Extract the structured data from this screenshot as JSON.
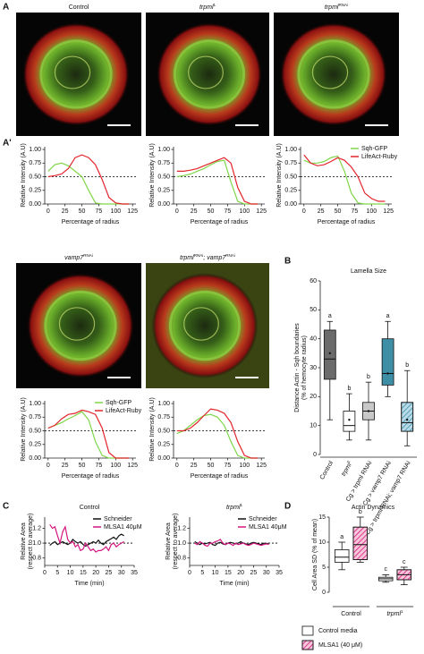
{
  "panel_labels": [
    "A",
    "A'",
    "B",
    "C",
    "D"
  ],
  "images": [
    {
      "title": "Control"
    },
    {
      "title": [
        {
          "text": "trpml"
        },
        {
          "sup": "1"
        }
      ]
    },
    {
      "title": [
        {
          "text": "trpml"
        },
        {
          "sup": "RNAi"
        }
      ]
    },
    {
      "title": [
        {
          "text": "vamp7"
        },
        {
          "sup": "RNAi"
        }
      ]
    },
    {
      "title": [
        {
          "text": "trpml"
        },
        {
          "sup": "RNAi"
        },
        {
          "text": "; vamp7"
        },
        {
          "sup": "RNAi"
        }
      ]
    }
  ],
  "chart_data": [
    {
      "type": "line",
      "ylabel": "Relative Intensity (A.U)",
      "xlabel": "Percentage of radius",
      "x": [
        0,
        10,
        20,
        30,
        40,
        50,
        60,
        70,
        80,
        90,
        100,
        110,
        120
      ],
      "xlim": [
        -5,
        130
      ],
      "xticks": [
        0,
        25,
        50,
        75,
        100,
        125
      ],
      "ylim": [
        0,
        1.05
      ],
      "yticks": [
        {
          "value": 0,
          "label": "0.00"
        },
        {
          "value": 0.25,
          "label": "0.25"
        },
        {
          "value": 0.5,
          "label": "0.50"
        },
        {
          "value": 0.75,
          "label": "0.75"
        },
        {
          "value": 1,
          "label": "1.00"
        }
      ],
      "reference_line": 0.5,
      "series": [
        {
          "color": "#7fd64a",
          "values": [
            0.6,
            0.72,
            0.75,
            0.7,
            0.6,
            0.5,
            0.25,
            0.02,
            0,
            0,
            0,
            0,
            0
          ]
        },
        {
          "color": "#e3242b",
          "values": [
            0.5,
            0.52,
            0.55,
            0.65,
            0.85,
            0.9,
            0.85,
            0.72,
            0.45,
            0.12,
            0.02,
            0,
            0
          ]
        }
      ]
    },
    {
      "type": "line",
      "ylabel": "Relative Intensity (A.U)",
      "xlabel": "Percentage of radius",
      "x": [
        0,
        10,
        20,
        30,
        40,
        50,
        60,
        70,
        80,
        90,
        100,
        110,
        120
      ],
      "xlim": [
        -5,
        130
      ],
      "xticks": [
        0,
        25,
        50,
        75,
        100,
        125
      ],
      "ylim": [
        0,
        1.05
      ],
      "yticks": [
        {
          "value": 0,
          "label": "0.00"
        },
        {
          "value": 0.25,
          "label": "0.25"
        },
        {
          "value": 0.5,
          "label": "0.50"
        },
        {
          "value": 0.75,
          "label": "0.75"
        },
        {
          "value": 1,
          "label": "1.00"
        }
      ],
      "reference_line": 0.5,
      "series": [
        {
          "color": "#7fd64a",
          "values": [
            0.5,
            0.52,
            0.55,
            0.6,
            0.65,
            0.72,
            0.78,
            0.8,
            0.4,
            0.05,
            0,
            0,
            0
          ]
        },
        {
          "color": "#e3242b",
          "values": [
            0.6,
            0.6,
            0.62,
            0.65,
            0.7,
            0.75,
            0.8,
            0.85,
            0.75,
            0.3,
            0.05,
            0,
            0
          ]
        }
      ]
    },
    {
      "type": "line",
      "ylabel": "Relative Intensity (A.U)",
      "xlabel": "Percentage of radius",
      "x": [
        0,
        10,
        20,
        30,
        40,
        50,
        60,
        70,
        80,
        90,
        100,
        110,
        120
      ],
      "xlim": [
        -5,
        130
      ],
      "xticks": [
        0,
        25,
        50,
        75,
        100,
        125
      ],
      "ylim": [
        0,
        1.05
      ],
      "yticks": [
        {
          "value": 0,
          "label": "0.00"
        },
        {
          "value": 0.25,
          "label": "0.25"
        },
        {
          "value": 0.5,
          "label": "0.50"
        },
        {
          "value": 0.75,
          "label": "0.75"
        },
        {
          "value": 1,
          "label": "1.00"
        }
      ],
      "reference_line": 0.5,
      "legend": "upper right",
      "series": [
        {
          "name": "Sqh-GFP",
          "color": "#7fd64a",
          "values": [
            0.8,
            0.75,
            0.75,
            0.78,
            0.85,
            0.88,
            0.6,
            0.2,
            0.02,
            0,
            0,
            0,
            0
          ]
        },
        {
          "name": "LifeAct-Ruby",
          "color": "#e3242b",
          "values": [
            0.9,
            0.75,
            0.7,
            0.72,
            0.78,
            0.85,
            0.8,
            0.68,
            0.5,
            0.2,
            0.1,
            0.05,
            0.05
          ]
        }
      ]
    },
    {
      "type": "line",
      "ylabel": "Relative Intensity (A.U)",
      "xlabel": "Percentage of radius",
      "x": [
        0,
        10,
        20,
        30,
        40,
        50,
        60,
        70,
        80,
        90,
        100,
        110,
        120
      ],
      "xlim": [
        -5,
        130
      ],
      "xticks": [
        0,
        25,
        50,
        75,
        100,
        125
      ],
      "ylim": [
        0,
        1.05
      ],
      "yticks": [
        {
          "value": 0,
          "label": "0.00"
        },
        {
          "value": 0.25,
          "label": "0.25"
        },
        {
          "value": 0.5,
          "label": "0.50"
        },
        {
          "value": 0.75,
          "label": "0.75"
        },
        {
          "value": 1,
          "label": "1.00"
        }
      ],
      "reference_line": 0.5,
      "legend": "upper right",
      "series": [
        {
          "name": "Sqh-GFP",
          "color": "#7fd64a",
          "values": [
            0.55,
            0.6,
            0.65,
            0.72,
            0.78,
            0.85,
            0.7,
            0.3,
            0.05,
            0,
            0,
            0,
            0
          ]
        },
        {
          "name": "LifeAct-Ruby",
          "color": "#e3242b",
          "values": [
            0.55,
            0.6,
            0.72,
            0.8,
            0.82,
            0.88,
            0.85,
            0.8,
            0.55,
            0.1,
            0,
            0,
            0
          ]
        }
      ]
    },
    {
      "type": "line",
      "ylabel": "Relative Intensity (A.U)",
      "xlabel": "Percentage of radius",
      "x": [
        0,
        10,
        20,
        30,
        40,
        50,
        60,
        70,
        80,
        90,
        100,
        110,
        120
      ],
      "xlim": [
        -5,
        130
      ],
      "xticks": [
        0,
        25,
        50,
        75,
        100,
        125
      ],
      "ylim": [
        0,
        1.05
      ],
      "yticks": [
        {
          "value": 0,
          "label": "0.00"
        },
        {
          "value": 0.25,
          "label": "0.25"
        },
        {
          "value": 0.5,
          "label": "0.50"
        },
        {
          "value": 0.75,
          "label": "0.75"
        },
        {
          "value": 1,
          "label": "1.00"
        }
      ],
      "reference_line": 0.5,
      "series": [
        {
          "color": "#7fd64a",
          "values": [
            0.45,
            0.5,
            0.6,
            0.7,
            0.78,
            0.8,
            0.75,
            0.6,
            0.3,
            0.05,
            0,
            0,
            0
          ]
        },
        {
          "color": "#e3242b",
          "values": [
            0.5,
            0.5,
            0.55,
            0.65,
            0.78,
            0.9,
            0.88,
            0.82,
            0.65,
            0.3,
            0.05,
            0,
            0
          ]
        }
      ]
    },
    {
      "type": "box",
      "title": "Lamella Size",
      "ylabel": [
        "Distance Actin - Sqh boundaries",
        "(% of hemocyte radius)"
      ],
      "categories": [
        "Control",
        [
          {
            "text": "trpml"
          },
          {
            "sup": "1"
          }
        ],
        "Cg > trpml RNAi",
        "Cg > vamp7 RNAi",
        "Cg > trpml RNAi; vamp7 RNAi"
      ],
      "ylim": [
        0,
        60
      ],
      "yticks": [
        0,
        10,
        20,
        30,
        40,
        50,
        60
      ],
      "boxes": [
        {
          "min": 12,
          "q1": 26,
          "median": 33,
          "q3": 43,
          "max": 46,
          "mean": 35,
          "color": "#6b6b6b",
          "letter": "a"
        },
        {
          "min": 5,
          "q1": 8,
          "median": 10,
          "q3": 15,
          "max": 21,
          "mean": 12,
          "color": "#ffffff",
          "letter": "b"
        },
        {
          "min": 5,
          "q1": 12,
          "median": 15,
          "q3": 18,
          "max": 25,
          "mean": 15,
          "color": "#c8c8c8",
          "letter": "b"
        },
        {
          "min": 20,
          "q1": 24,
          "median": 28,
          "q3": 40,
          "max": 46,
          "mean": 28,
          "color": "#3e8ea6",
          "letter": "a"
        },
        {
          "min": 3,
          "q1": 8,
          "median": 11,
          "q3": 18,
          "max": 29,
          "mean": 12,
          "color": "#b9dbe8",
          "hatch_color": "#3e8ea6",
          "letter": "b"
        }
      ]
    },
    {
      "type": "line",
      "title": "Control",
      "ylabel": [
        "Relative Area",
        "(respect to average)"
      ],
      "xlabel": "Time (min)",
      "x": [
        2,
        3,
        4,
        5,
        6,
        7,
        8,
        9,
        10,
        11,
        12,
        13,
        14,
        15,
        16,
        17,
        18,
        19,
        20,
        21,
        22,
        23,
        24,
        25,
        26,
        27,
        28,
        29,
        30,
        31
      ],
      "xlim": [
        0,
        35
      ],
      "xticks": [
        0,
        5,
        10,
        15,
        20,
        25,
        30,
        35
      ],
      "ylim": [
        0.7,
        1.35
      ],
      "yticks": [
        0.8,
        {
          "value": 1,
          "label": "1.0"
        },
        1.2
      ],
      "reference_line": 1,
      "legend": "upper right",
      "series": [
        {
          "name": "Schneider",
          "color": "#111111",
          "values": [
            0.97,
            1.0,
            1.02,
            0.98,
            1.0,
            1.02,
            1.0,
            0.98,
            1.0,
            1.05,
            1.02,
            1.0,
            1.02,
            0.98,
            0.96,
            0.98,
            1.0,
            1.02,
            1.0,
            1.04,
            1.0,
            0.98,
            1.02,
            1.04,
            1.06,
            1.08,
            1.05,
            1.1,
            1.12,
            1.1
          ]
        },
        {
          "name": "MLSA1 40μM",
          "color": "#d4157f",
          "values": [
            1.25,
            1.2,
            1.22,
            1.1,
            1.0,
            1.15,
            1.22,
            1.05,
            1.0,
            1.02,
            0.95,
            0.98,
            0.9,
            0.92,
            1.0,
            0.95,
            0.9,
            0.92,
            0.88,
            0.9,
            0.9,
            0.92,
            0.95,
            0.9,
            0.98,
            1.0,
            0.95,
            0.98,
            1.0,
            1.02
          ]
        }
      ]
    },
    {
      "type": "line",
      "title": [
        {
          "text": "trpml"
        },
        {
          "sup": "1"
        }
      ],
      "ylabel": [
        "Relative Area",
        "(respect to average)"
      ],
      "xlabel": "Time (min)",
      "x": [
        2,
        3,
        4,
        5,
        6,
        7,
        8,
        9,
        10,
        11,
        12,
        13,
        14,
        15,
        16,
        17,
        18,
        19,
        20,
        21,
        22,
        23,
        24,
        25,
        26,
        27,
        28,
        29,
        30,
        31
      ],
      "xlim": [
        0,
        35
      ],
      "xticks": [
        0,
        5,
        10,
        15,
        20,
        25,
        30,
        35
      ],
      "ylim": [
        0.7,
        1.35
      ],
      "yticks": [
        0.8,
        {
          "value": 1,
          "label": "1.0"
        },
        1.2
      ],
      "reference_line": 1,
      "legend": "upper right",
      "series": [
        {
          "name": "Schneider",
          "color": "#111111",
          "values": [
            1.02,
            1.0,
            0.98,
            1.0,
            0.99,
            1.0,
            1.01,
            0.98,
            0.97,
            1.0,
            1.01,
            0.99,
            0.98,
            1.0,
            1.01,
            1.0,
            0.99,
            1.0,
            1.02,
            1.0,
            0.99,
            0.98,
            1.0,
            1.01,
            1.0,
            0.99,
            0.98,
            1.0,
            0.99,
            1.0
          ]
        },
        {
          "name": "MLSA1 40μM",
          "color": "#d4157f",
          "values": [
            1.0,
            0.98,
            1.02,
            1.0,
            0.97,
            0.96,
            1.0,
            1.0,
            1.02,
            1.03,
            1.05,
            1.0,
            0.98,
            1.0,
            0.99,
            0.97,
            1.0,
            0.98,
            0.99,
            1.0,
            0.98,
            0.97,
            0.98,
            1.0,
            0.99,
            0.98,
            0.97,
            0.98,
            0.99,
            0.98
          ]
        }
      ]
    },
    {
      "type": "box",
      "title": "Actin Dynamics",
      "ylabel": "Cell Area SD (% of mean)",
      "categories": [
        "Control",
        [
          {
            "text": "trpml"
          },
          {
            "sup": "1"
          }
        ]
      ],
      "ylim": [
        0,
        15
      ],
      "yticks": [
        0,
        5,
        10,
        15
      ],
      "series": [
        {
          "name": "Control media",
          "color": "#ffffff",
          "boxes": [
            {
              "min": 4.5,
              "q1": 6,
              "median": 7,
              "q3": 8.5,
              "max": 10,
              "letter": "a"
            },
            {
              "min": 2,
              "q1": 2.3,
              "median": 2.7,
              "q3": 3,
              "max": 3.5,
              "letter": "c"
            }
          ]
        },
        {
          "name": "MLSA1 (40 μM)",
          "color": "#f7c6d9",
          "hatch_color": "#d4157f",
          "boxes": [
            {
              "min": 6,
              "q1": 6.5,
              "median": 9.5,
              "q3": 13,
              "max": 15,
              "letter": "b"
            },
            {
              "min": 1.5,
              "q1": 2.5,
              "median": 3.5,
              "q3": 4.5,
              "max": 5,
              "letter": "c"
            }
          ]
        }
      ]
    }
  ]
}
